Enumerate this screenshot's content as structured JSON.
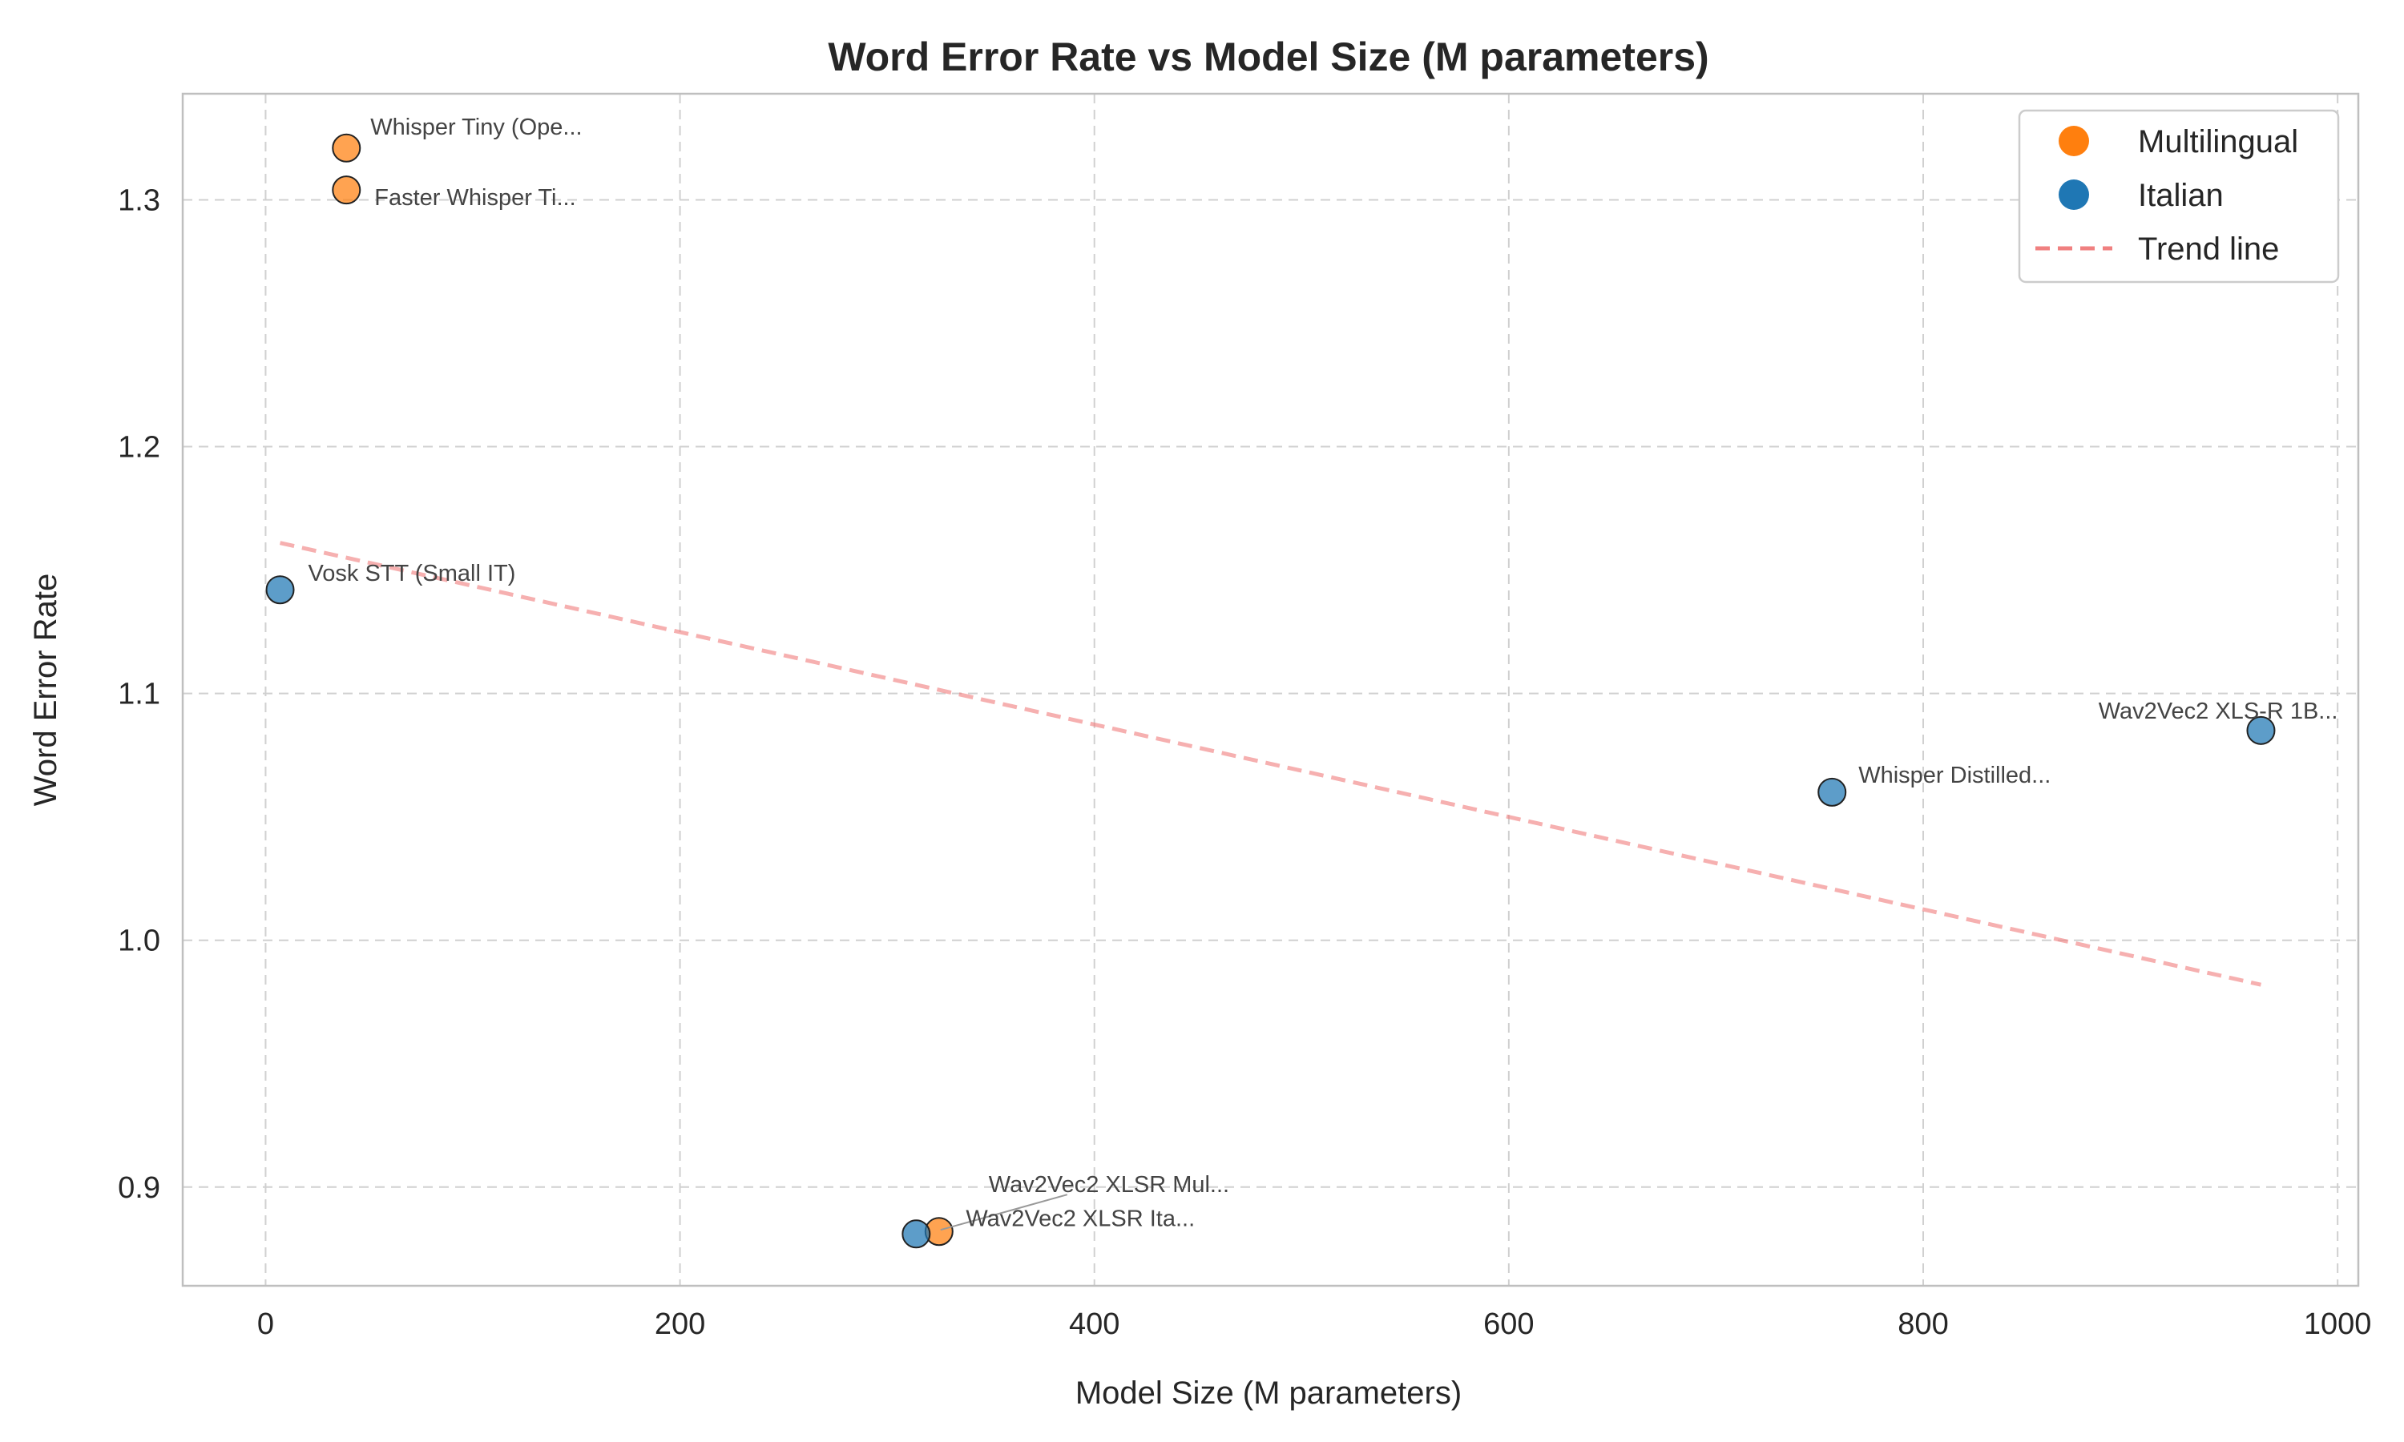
{
  "chart_data": {
    "type": "scatter",
    "title": "Word Error Rate vs Model Size (M parameters)",
    "xlabel": "Model Size (M parameters)",
    "ylabel": "Word Error Rate",
    "xlim": [
      -40,
      1010
    ],
    "ylim": [
      0.86,
      1.343
    ],
    "xticks": [
      0,
      200,
      400,
      600,
      800,
      1000
    ],
    "yticks": [
      0.9,
      1.0,
      1.1,
      1.2,
      1.3
    ],
    "ytick_labels": [
      "0.9",
      "1.0",
      "1.1",
      "1.2",
      "1.3"
    ],
    "grid": true,
    "legend_position": "top-right",
    "colors": {
      "Multilingual": "#ff7f0e",
      "Italian": "#1f77b4",
      "trend": "#f08080"
    },
    "series": [
      {
        "name": "Multilingual",
        "points": [
          {
            "label": "Whisper Tiny (Ope...",
            "x": 39,
            "y": 1.321
          },
          {
            "label": "Faster Whisper Ti...",
            "x": 39,
            "y": 1.304
          },
          {
            "label": "Wav2Vec2 XLSR Mul...",
            "x": 325,
            "y": 0.882
          }
        ]
      },
      {
        "name": "Italian",
        "points": [
          {
            "label": "Vosk STT (Small IT)",
            "x": 7,
            "y": 1.142
          },
          {
            "label": "Wav2Vec2 XLSR Ita...",
            "x": 314,
            "y": 0.881
          },
          {
            "label": "Whisper Distilled...",
            "x": 756,
            "y": 1.06
          },
          {
            "label": "Wav2Vec2 XLS-R 1B...",
            "x": 963,
            "y": 1.085
          }
        ]
      }
    ],
    "trend_line": {
      "name": "Trend line",
      "x": [
        7,
        963
      ],
      "y": [
        1.161,
        0.982
      ]
    }
  }
}
